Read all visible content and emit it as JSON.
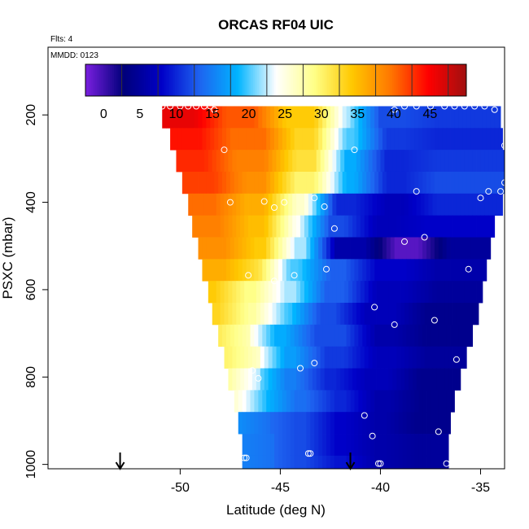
{
  "chart_data": {
    "type": "heatmap",
    "title": "ORCAS RF04 UIC",
    "corner_labels": [
      "Flts: 4",
      "MMDD: 0123"
    ],
    "xlabel": "Latitude (deg N)",
    "ylabel": "PSXC (mbar)",
    "xlim": [
      -56.6,
      -33.8
    ],
    "ylim": [
      1010,
      45
    ],
    "x_ticks": [
      -50,
      -45,
      -40,
      -35
    ],
    "x_tick_labels": [
      "-50",
      "-45",
      "-40",
      "-35"
    ],
    "y_ticks": [
      200,
      400,
      600,
      800,
      1000
    ],
    "y_tick_labels": [
      "200",
      "400",
      "600",
      "800",
      "1000"
    ],
    "colorbar": {
      "min": -2.5,
      "max": 50,
      "ticks": [
        0,
        5,
        10,
        15,
        20,
        25,
        30,
        35,
        40,
        45
      ],
      "tick_labels": [
        "0",
        "5",
        "10",
        "15",
        "20",
        "25",
        "30",
        "35",
        "40",
        "45"
      ],
      "colors": [
        "#7a1fe0",
        "#00007a",
        "#0000c8",
        "#1e64f0",
        "#00b4ff",
        "#ffffff",
        "#ffff88",
        "#ffc800",
        "#ff7800",
        "#ff0000",
        "#a01010"
      ]
    },
    "pressure_bands": [
      {
        "p": 180,
        "west": -50.9,
        "east": -34.0,
        "cuts": [
          -48.5,
          -45.5,
          -42.5,
          -40.8,
          -38.0
        ],
        "vals": [
          46,
          41,
          34,
          22,
          12,
          11
        ]
      },
      {
        "p": 230,
        "west": -50.5,
        "east": -33.9,
        "cuts": [
          -48.2,
          -45.0,
          -42.5,
          -40.5,
          -38.0
        ],
        "vals": [
          44,
          40,
          33,
          20,
          11,
          10
        ]
      },
      {
        "p": 280,
        "west": -50.2,
        "east": -33.8,
        "cuts": [
          -48.0,
          -45.0,
          -42.5,
          -40.5,
          -38.0
        ],
        "vals": [
          43,
          39,
          32,
          18,
          10,
          11
        ]
      },
      {
        "p": 330,
        "west": -49.9,
        "east": -33.8,
        "cuts": [
          -47.5,
          -45.0,
          -42.5,
          -40.5,
          -38.0
        ],
        "vals": [
          42,
          38,
          30,
          18,
          10,
          12
        ]
      },
      {
        "p": 380,
        "west": -49.6,
        "east": -33.9,
        "cuts": [
          -47.5,
          -45.0,
          -43.0,
          -40.5,
          -38.0
        ],
        "vals": [
          40,
          36,
          26,
          10,
          7,
          10
        ]
      },
      {
        "p": 430,
        "west": -49.4,
        "east": -34.3,
        "cuts": [
          -47.3,
          -45.0,
          -43.3,
          -41.0,
          -38.5
        ],
        "vals": [
          39,
          35,
          24,
          12,
          7,
          8
        ]
      },
      {
        "p": 480,
        "west": -49.1,
        "east": -34.5,
        "cuts": [
          -47.0,
          -45.0,
          -43.0,
          -40.0,
          -37.3
        ],
        "vals": [
          38,
          34,
          22,
          6,
          -1,
          5
        ]
      },
      {
        "p": 530,
        "west": -48.9,
        "east": -34.7,
        "cuts": [
          -47.0,
          -45.3,
          -43.3,
          -41.0,
          -38.0
        ],
        "vals": [
          36,
          32,
          20,
          13,
          8,
          6
        ]
      },
      {
        "p": 580,
        "west": -48.6,
        "east": -34.9,
        "cuts": [
          -47.5,
          -45.5,
          -43.5,
          -41.0,
          -38.0
        ],
        "vals": [
          34,
          29,
          22,
          13,
          7,
          5
        ]
      },
      {
        "p": 630,
        "west": -48.4,
        "east": -35.1,
        "cuts": [
          -47.3,
          -45.5,
          -43.8,
          -41.5,
          -38.5
        ],
        "vals": [
          33,
          28,
          20,
          12,
          7,
          4
        ]
      },
      {
        "p": 680,
        "west": -48.1,
        "east": -35.4,
        "cuts": [
          -47.3,
          -46.0,
          -44.0,
          -41.0,
          -38.5
        ],
        "vals": [
          31,
          27,
          18,
          12,
          6,
          4
        ]
      },
      {
        "p": 730,
        "west": -47.8,
        "east": -35.7,
        "cuts": [
          -46.8,
          -45.5,
          -43.5,
          -41.0,
          -38.5
        ],
        "vals": [
          30,
          26,
          17,
          11,
          7,
          5
        ]
      },
      {
        "p": 780,
        "west": -47.6,
        "east": -36.0,
        "cuts": [
          -46.8,
          -45.5,
          -43.5,
          -41.5,
          -38.8
        ],
        "vals": [
          28,
          22,
          15,
          10,
          7,
          4
        ]
      },
      {
        "p": 830,
        "west": -47.3,
        "east": -36.3,
        "cuts": [
          -46.5,
          -45.0,
          -43.0,
          -41.0,
          -38.8
        ],
        "vals": [
          26,
          19,
          14,
          10,
          6,
          4
        ]
      },
      {
        "p": 880,
        "west": -47.1,
        "east": -36.5,
        "cuts": [
          -46.3,
          -45.0,
          -43.0,
          -41.0,
          -39.0
        ],
        "vals": [
          16,
          14,
          12,
          8,
          6,
          4
        ]
      },
      {
        "p": 930,
        "west": -46.9,
        "east": -36.6,
        "cuts": [
          -46.0,
          -45.0,
          -43.0,
          -41.0,
          -39.0
        ],
        "vals": [
          15,
          14,
          12,
          8,
          6,
          5
        ]
      },
      {
        "p": 980,
        "west": -46.9,
        "east": -36.6,
        "cuts": [
          -46.0,
          -45.0,
          -43.0,
          -41.0,
          -39.0
        ],
        "vals": [
          15,
          14,
          12,
          9,
          6,
          5
        ]
      },
      {
        "p": 1000,
        "west": -46.9,
        "east": -36.6,
        "cuts": [
          -46.0,
          -45.0,
          -43.0,
          -41.0,
          -39.0
        ],
        "vals": [
          15,
          14,
          12,
          9,
          6,
          5
        ]
      }
    ],
    "points": [
      [
        -50.9,
        180
      ],
      [
        -50.5,
        180
      ],
      [
        -50.0,
        180
      ],
      [
        -49.6,
        180
      ],
      [
        -49.2,
        180
      ],
      [
        -48.8,
        180
      ],
      [
        -48.5,
        180
      ],
      [
        -48.3,
        188
      ],
      [
        -47.8,
        280
      ],
      [
        -47.5,
        400
      ],
      [
        -45.8,
        398
      ],
      [
        -45.3,
        412
      ],
      [
        -44.8,
        400
      ],
      [
        -43.3,
        390
      ],
      [
        -42.8,
        410
      ],
      [
        -42.3,
        460
      ],
      [
        -41.3,
        280
      ],
      [
        -40.3,
        640
      ],
      [
        -39.3,
        680
      ],
      [
        -38.8,
        490
      ],
      [
        -38.2,
        375
      ],
      [
        -37.8,
        480
      ],
      [
        -37.3,
        670
      ],
      [
        -36.2,
        760
      ],
      [
        -39.3,
        188
      ],
      [
        -38.8,
        180
      ],
      [
        -38.2,
        180
      ],
      [
        -37.5,
        180
      ],
      [
        -36.8,
        180
      ],
      [
        -36.3,
        180
      ],
      [
        -35.8,
        180
      ],
      [
        -35.3,
        180
      ],
      [
        -34.8,
        180
      ],
      [
        -34.3,
        188
      ],
      [
        -33.8,
        270
      ],
      [
        -33.8,
        355
      ],
      [
        -34.0,
        375
      ],
      [
        -34.6,
        375
      ],
      [
        -35.0,
        390
      ],
      [
        -35.6,
        553
      ],
      [
        -46.6,
        567
      ],
      [
        -45.3,
        580
      ],
      [
        -44.3,
        567
      ],
      [
        -42.7,
        553
      ],
      [
        -46.4,
        785
      ],
      [
        -46.1,
        803
      ],
      [
        -44.0,
        780
      ],
      [
        -43.3,
        768
      ],
      [
        -40.8,
        888
      ],
      [
        -40.4,
        935
      ],
      [
        -37.1,
        925
      ],
      [
        -36.7,
        998
      ],
      [
        -40.0,
        998
      ],
      [
        -40.1,
        998
      ],
      [
        -43.5,
        975
      ],
      [
        -43.6,
        975
      ],
      [
        -46.7,
        985
      ],
      [
        -46.8,
        985
      ]
    ],
    "markers": [
      -53.0,
      -41.5
    ]
  }
}
